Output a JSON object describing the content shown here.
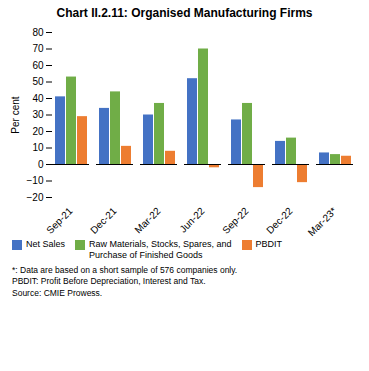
{
  "chart_data": {
    "type": "bar",
    "title": "Chart II.2.11: Organised Manufacturing Firms",
    "categories": [
      "Sep-21",
      "Dec-21",
      "Mar-22",
      "Jun-22",
      "Sep-22",
      "Dec-22",
      "Mar-23*"
    ],
    "series": [
      {
        "name": "Net Sales",
        "color": "#4472C4",
        "values": [
          41,
          34,
          30,
          52,
          27,
          14,
          7
        ]
      },
      {
        "name": "Raw Materials, Stocks, Spares, and\nPurchase of Finished Goods",
        "color": "#70AD47",
        "values": [
          53,
          44,
          37,
          70,
          37,
          16,
          6
        ]
      },
      {
        "name": "PBDIT",
        "color": "#ED7D31",
        "values": [
          29,
          11,
          8,
          -2,
          -14,
          -11,
          5
        ]
      }
    ],
    "ylabel": "Per cent",
    "ylim": [
      -20,
      80
    ],
    "yticks": [
      -20,
      -10,
      0,
      10,
      20,
      30,
      40,
      50,
      60,
      70,
      80
    ],
    "grid": false,
    "legend": "bottom",
    "annotations": [
      "*: Data are based on a short sample of 576 companies only.",
      "PBDIT: Profit Before Depreciation, Interest and Tax.",
      "Source: CMIE Prowess."
    ]
  }
}
